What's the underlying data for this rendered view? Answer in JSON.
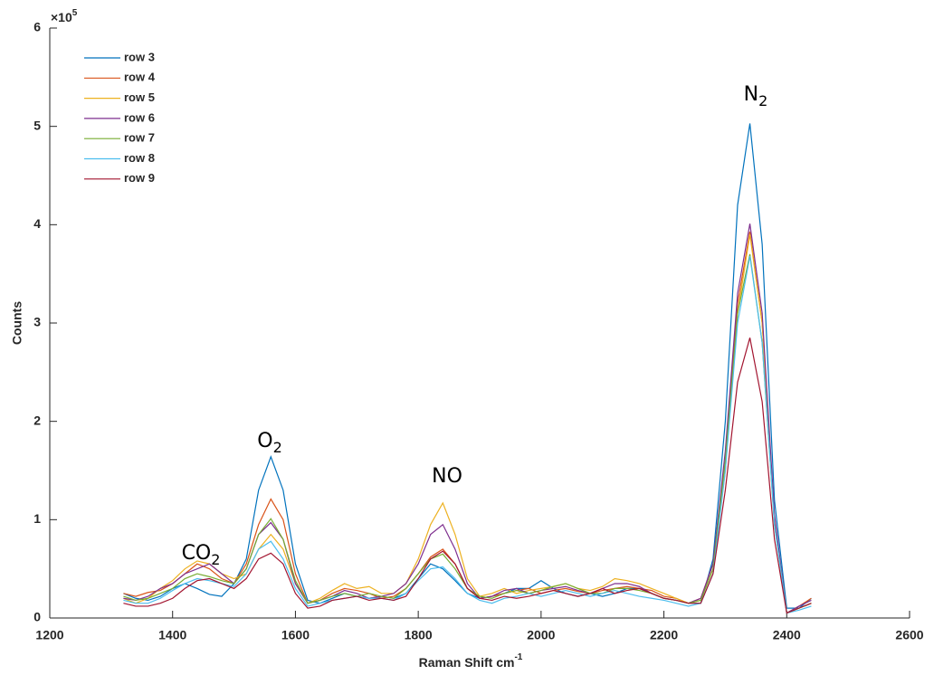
{
  "chart_data": {
    "type": "line",
    "x_label": "Raman Shift cm",
    "x_label_sup": "-1",
    "y_label": "Counts",
    "y_multiplier": {
      "base": "×10",
      "exponent": "5"
    },
    "xlim": [
      1200,
      2600
    ],
    "xticks": [
      1200,
      1400,
      1600,
      1800,
      2000,
      2200,
      2400,
      2600
    ],
    "ylim": [
      0,
      6
    ],
    "yticks": [
      0,
      1,
      2,
      3,
      4,
      5,
      6
    ],
    "legend": "top-left",
    "annotations": [
      {
        "text": "CO",
        "sub": "2"
      },
      {
        "text": "O",
        "sub": "2"
      },
      {
        "text": "NO"
      },
      {
        "text": "N",
        "sub": "2"
      }
    ],
    "x": [
      1320,
      1340,
      1360,
      1380,
      1400,
      1420,
      1440,
      1460,
      1480,
      1500,
      1520,
      1540,
      1560,
      1580,
      1600,
      1620,
      1640,
      1660,
      1680,
      1700,
      1720,
      1740,
      1760,
      1780,
      1800,
      1820,
      1840,
      1860,
      1880,
      1900,
      1920,
      1940,
      1960,
      1980,
      2000,
      2020,
      2040,
      2060,
      2080,
      2100,
      2120,
      2140,
      2160,
      2180,
      2200,
      2220,
      2240,
      2260,
      2280,
      2300,
      2320,
      2340,
      2360,
      2380,
      2400,
      2420,
      2440
    ],
    "series": [
      {
        "name": "row 3",
        "color": "#0072BD",
        "values": [
          0.25,
          0.2,
          0.18,
          0.22,
          0.3,
          0.35,
          0.3,
          0.24,
          0.22,
          0.35,
          0.6,
          1.3,
          1.64,
          1.3,
          0.55,
          0.18,
          0.15,
          0.2,
          0.25,
          0.22,
          0.2,
          0.22,
          0.2,
          0.25,
          0.4,
          0.55,
          0.5,
          0.38,
          0.25,
          0.2,
          0.22,
          0.25,
          0.3,
          0.3,
          0.38,
          0.3,
          0.25,
          0.22,
          0.25,
          0.22,
          0.25,
          0.3,
          0.3,
          0.25,
          0.2,
          0.18,
          0.15,
          0.15,
          0.6,
          2.0,
          4.2,
          5.03,
          3.8,
          1.2,
          0.1,
          0.1,
          0.2
        ]
      },
      {
        "name": "row 4",
        "color": "#D95319",
        "values": [
          0.25,
          0.22,
          0.26,
          0.28,
          0.35,
          0.45,
          0.55,
          0.5,
          0.4,
          0.35,
          0.55,
          0.95,
          1.21,
          1.0,
          0.45,
          0.15,
          0.18,
          0.25,
          0.3,
          0.28,
          0.25,
          0.2,
          0.22,
          0.3,
          0.45,
          0.62,
          0.7,
          0.55,
          0.3,
          0.2,
          0.22,
          0.25,
          0.28,
          0.3,
          0.25,
          0.28,
          0.3,
          0.27,
          0.25,
          0.28,
          0.3,
          0.32,
          0.3,
          0.28,
          0.22,
          0.2,
          0.15,
          0.2,
          0.55,
          1.6,
          3.2,
          3.93,
          3.0,
          1.0,
          0.05,
          0.12,
          0.2
        ]
      },
      {
        "name": "row 5",
        "color": "#EDB120",
        "values": [
          0.2,
          0.15,
          0.2,
          0.3,
          0.38,
          0.5,
          0.58,
          0.55,
          0.45,
          0.4,
          0.45,
          0.7,
          0.85,
          0.7,
          0.35,
          0.15,
          0.2,
          0.28,
          0.35,
          0.3,
          0.32,
          0.25,
          0.25,
          0.35,
          0.6,
          0.95,
          1.17,
          0.85,
          0.4,
          0.22,
          0.25,
          0.3,
          0.25,
          0.28,
          0.3,
          0.32,
          0.35,
          0.3,
          0.28,
          0.32,
          0.4,
          0.38,
          0.35,
          0.3,
          0.25,
          0.2,
          0.15,
          0.18,
          0.5,
          1.5,
          3.1,
          3.9,
          3.0,
          1.0,
          0.05,
          0.1,
          0.15
        ]
      },
      {
        "name": "row 6",
        "color": "#7E2F8E",
        "values": [
          0.2,
          0.18,
          0.22,
          0.3,
          0.35,
          0.45,
          0.5,
          0.55,
          0.45,
          0.35,
          0.5,
          0.85,
          0.97,
          0.8,
          0.35,
          0.15,
          0.18,
          0.22,
          0.28,
          0.25,
          0.2,
          0.22,
          0.25,
          0.35,
          0.55,
          0.85,
          0.95,
          0.7,
          0.35,
          0.2,
          0.22,
          0.28,
          0.3,
          0.25,
          0.28,
          0.3,
          0.32,
          0.28,
          0.25,
          0.3,
          0.35,
          0.35,
          0.32,
          0.25,
          0.2,
          0.18,
          0.15,
          0.2,
          0.55,
          1.7,
          3.3,
          4.01,
          3.1,
          1.05,
          0.05,
          0.12,
          0.18
        ]
      },
      {
        "name": "row 7",
        "color": "#77AC30",
        "values": [
          0.22,
          0.18,
          0.2,
          0.25,
          0.3,
          0.4,
          0.45,
          0.42,
          0.38,
          0.35,
          0.5,
          0.85,
          1.01,
          0.8,
          0.38,
          0.15,
          0.18,
          0.22,
          0.25,
          0.22,
          0.25,
          0.22,
          0.2,
          0.3,
          0.45,
          0.6,
          0.65,
          0.5,
          0.3,
          0.22,
          0.2,
          0.25,
          0.28,
          0.25,
          0.28,
          0.32,
          0.35,
          0.3,
          0.25,
          0.25,
          0.3,
          0.3,
          0.28,
          0.25,
          0.2,
          0.18,
          0.15,
          0.18,
          0.5,
          1.6,
          3.1,
          3.7,
          2.8,
          0.95,
          0.05,
          0.1,
          0.15
        ]
      },
      {
        "name": "row 8",
        "color": "#4DBEEE",
        "values": [
          0.18,
          0.15,
          0.15,
          0.2,
          0.28,
          0.35,
          0.4,
          0.38,
          0.35,
          0.32,
          0.45,
          0.7,
          0.78,
          0.6,
          0.3,
          0.12,
          0.15,
          0.18,
          0.2,
          0.22,
          0.2,
          0.2,
          0.18,
          0.25,
          0.38,
          0.5,
          0.52,
          0.4,
          0.25,
          0.18,
          0.15,
          0.2,
          0.22,
          0.25,
          0.22,
          0.25,
          0.28,
          0.25,
          0.22,
          0.25,
          0.28,
          0.25,
          0.22,
          0.2,
          0.18,
          0.15,
          0.12,
          0.15,
          0.45,
          1.5,
          3.0,
          3.68,
          2.8,
          0.95,
          0.05,
          0.08,
          0.12
        ]
      },
      {
        "name": "row 9",
        "color": "#A2142F",
        "values": [
          0.15,
          0.12,
          0.12,
          0.15,
          0.2,
          0.3,
          0.38,
          0.4,
          0.35,
          0.3,
          0.4,
          0.6,
          0.66,
          0.55,
          0.25,
          0.1,
          0.12,
          0.18,
          0.2,
          0.22,
          0.18,
          0.2,
          0.18,
          0.22,
          0.4,
          0.6,
          0.68,
          0.55,
          0.3,
          0.2,
          0.18,
          0.22,
          0.2,
          0.22,
          0.25,
          0.28,
          0.25,
          0.22,
          0.25,
          0.3,
          0.25,
          0.28,
          0.3,
          0.25,
          0.2,
          0.18,
          0.15,
          0.15,
          0.45,
          1.3,
          2.4,
          2.85,
          2.2,
          0.8,
          0.05,
          0.1,
          0.15
        ]
      }
    ]
  }
}
